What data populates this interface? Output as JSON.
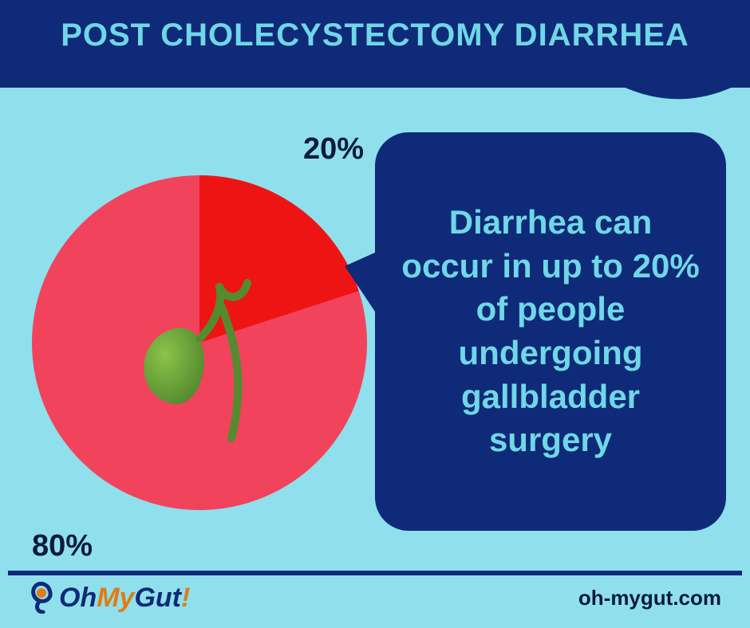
{
  "colors": {
    "page_bg": "#8fe0ec",
    "header_bg": "#0f2a78",
    "header_text": "#6fd7e6",
    "pie_slice_main": "#f2435c",
    "pie_slice_accent": "#ef1414",
    "callout_bg": "#0f2a78",
    "callout_text": "#6fd7e6",
    "label_dark": "#0c1b3a",
    "footer_bg": "#8fe0ec",
    "footer_border": "#0f2a78",
    "brand_oh": "#0f2a78",
    "brand_my": "#e07c13",
    "brand_gut": "#0f2a78",
    "brand_bang": "#e07c13",
    "brand_icon_stroke": "#0f2a78",
    "brand_icon_fill": "#e07c13",
    "gallbladder_light": "#8bc34a",
    "gallbladder_dark": "#558b2f"
  },
  "header": {
    "title": "POST CHOLECYSTECTOMY DIARRHEA"
  },
  "pie": {
    "type": "pie",
    "slices": [
      {
        "label": "20%",
        "value": 20,
        "color_key": "pie_slice_accent"
      },
      {
        "label": "80%",
        "value": 80,
        "color_key": "pie_slice_main"
      }
    ],
    "labels": {
      "accent": "20%",
      "main": "80%"
    }
  },
  "callout": {
    "text": "Diarrhea can occur in up to 20% of people undergoing gallbladder surgery"
  },
  "footer": {
    "brand_parts": {
      "oh": "Oh",
      "my": "My",
      "gut": "Gut",
      "bang": "!"
    },
    "url": "oh-mygut.com"
  }
}
